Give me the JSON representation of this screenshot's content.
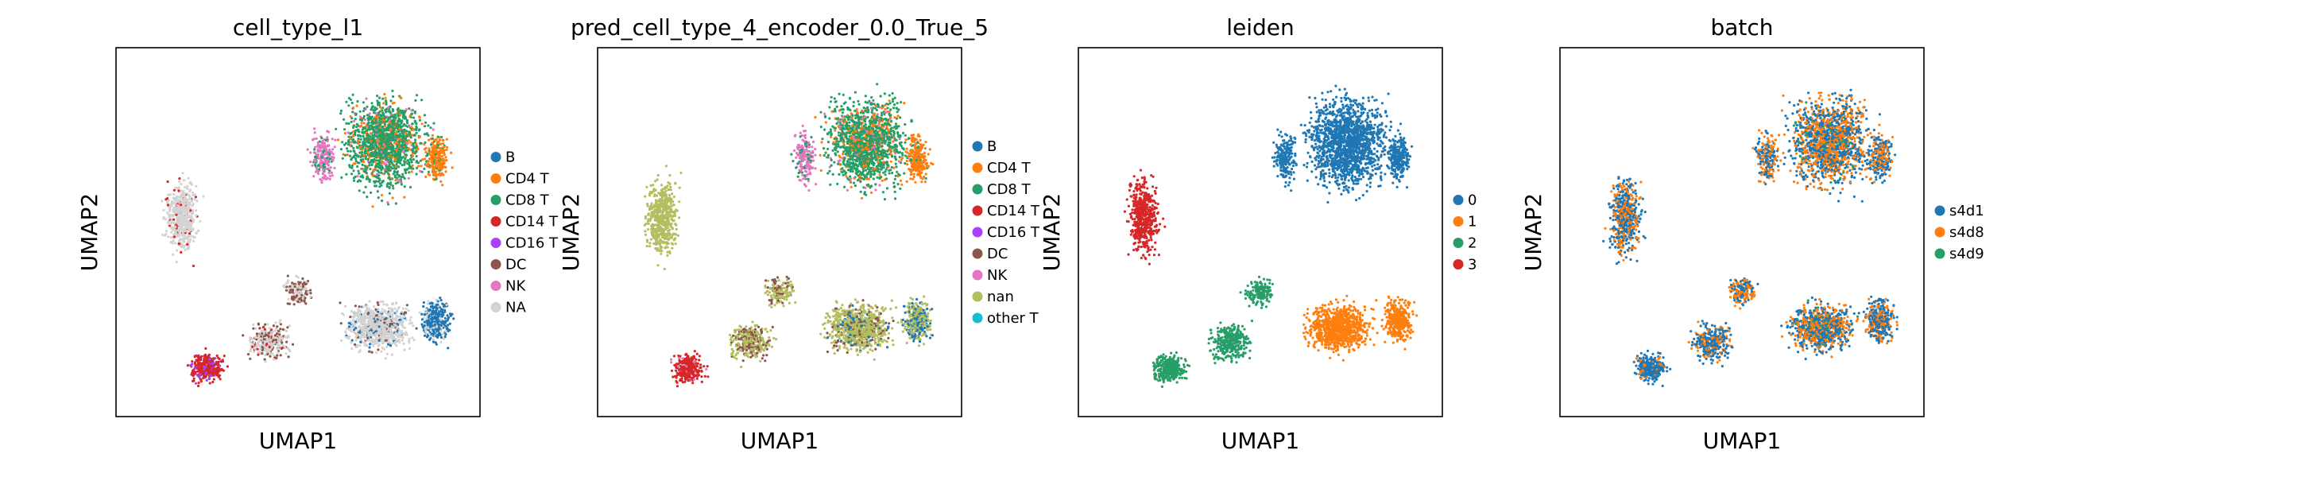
{
  "chart_data": [
    {
      "type": "scatter",
      "title": "cell_type_l1",
      "xlabel": "UMAP1",
      "ylabel": "UMAP2",
      "legend_placement": "right",
      "categories": [
        "B",
        "CD4 T",
        "CD8 T",
        "CD14 T",
        "CD16 T",
        "DC",
        "NK",
        "NA"
      ],
      "colors": [
        "#1f77b4",
        "#ff7f0e",
        "#279e68",
        "#d62728",
        "#aa40fc",
        "#8c564b",
        "#e377c2",
        "#d3d3d3"
      ]
    },
    {
      "type": "scatter",
      "title": "pred_cell_type_4_encoder_0.0_True_5",
      "xlabel": "UMAP1",
      "ylabel": "UMAP2",
      "legend_placement": "right",
      "categories": [
        "B",
        "CD4 T",
        "CD8 T",
        "CD14 T",
        "CD16 T",
        "DC",
        "NK",
        "nan",
        "other T"
      ],
      "colors": [
        "#1f77b4",
        "#ff7f0e",
        "#279e68",
        "#d62728",
        "#aa40fc",
        "#8c564b",
        "#e377c2",
        "#b5bd61",
        "#17becf"
      ]
    },
    {
      "type": "scatter",
      "title": "leiden",
      "xlabel": "UMAP1",
      "ylabel": "UMAP2",
      "legend_placement": "right",
      "categories": [
        "0",
        "1",
        "2",
        "3"
      ],
      "colors": [
        "#1f77b4",
        "#ff7f0e",
        "#279e68",
        "#d62728"
      ]
    },
    {
      "type": "scatter",
      "title": "batch",
      "xlabel": "UMAP1",
      "ylabel": "UMAP2",
      "legend_placement": "right",
      "categories": [
        "s4d1",
        "s4d8",
        "s4d9"
      ],
      "colors": [
        "#1f77b4",
        "#ff7f0e",
        "#279e68"
      ]
    }
  ]
}
